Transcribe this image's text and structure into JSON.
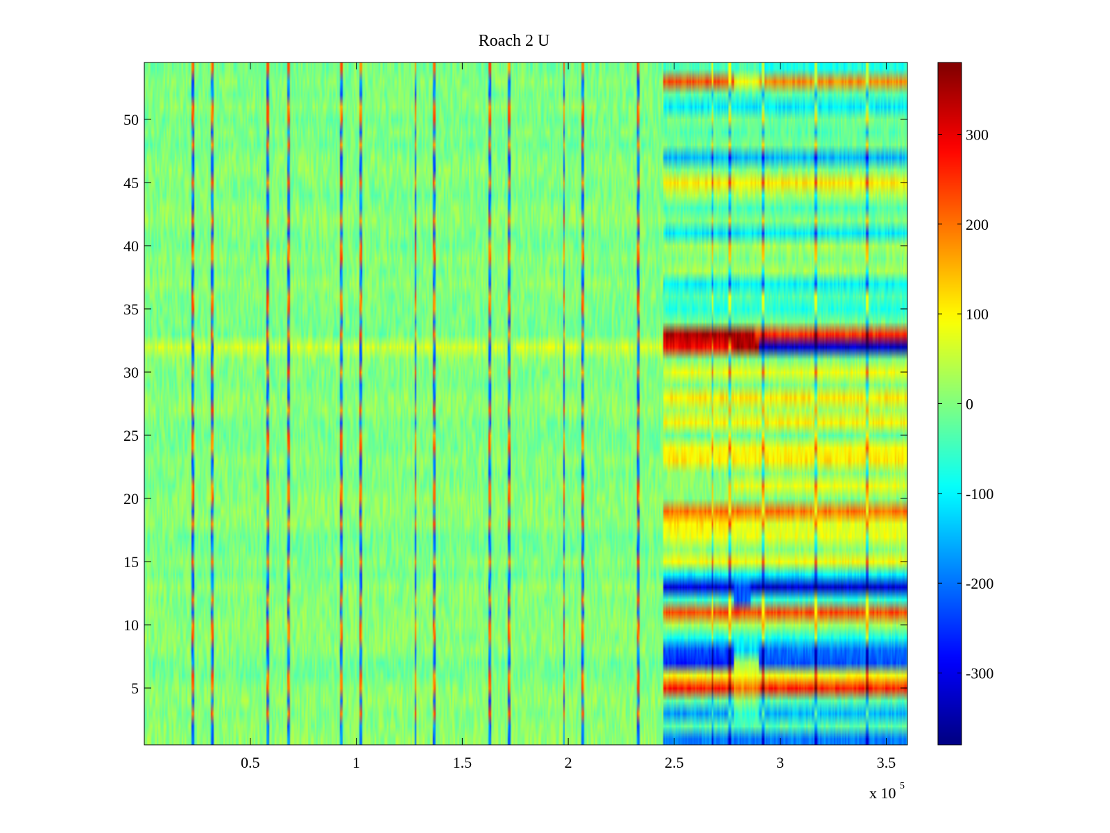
{
  "chart_data": {
    "type": "heatmap",
    "title": "Roach 2 U",
    "xlabel": "",
    "ylabel": "",
    "x_multiplier_label": {
      "base": "x 10",
      "exponent": "5"
    },
    "xlim": [
      0,
      3.6
    ],
    "ylim": [
      0.5,
      54.5
    ],
    "x_ticks": [
      0.5,
      1,
      1.5,
      2,
      2.5,
      3,
      3.5
    ],
    "x_tick_labels": [
      "0.5",
      "1",
      "1.5",
      "2",
      "2.5",
      "3",
      "3.5"
    ],
    "y_ticks": [
      5,
      10,
      15,
      20,
      25,
      30,
      35,
      40,
      45,
      50
    ],
    "y_tick_labels": [
      "5",
      "10",
      "15",
      "20",
      "25",
      "30",
      "35",
      "40",
      "45",
      "50"
    ],
    "colorbar": {
      "colormap": "jet",
      "clim": [
        -380,
        380
      ],
      "ticks": [
        300,
        200,
        100,
        0,
        -100,
        -200,
        -300
      ],
      "tick_labels": [
        "300",
        "200",
        "100",
        "0",
        "-100",
        "-200",
        "-300"
      ]
    },
    "rows": 54,
    "change_point_x": 2.45,
    "spike_x": [
      0.23,
      0.32,
      0.58,
      0.68,
      0.93,
      1.02,
      1.28,
      1.37,
      1.63,
      1.72,
      1.98,
      2.07,
      2.33
    ],
    "late_spike_x": [
      2.68,
      2.76,
      2.92,
      3.17,
      3.41
    ],
    "row_levels_before": {
      "32": 70,
      "6": -15,
      "1": 10,
      "2": 15,
      "13": 5,
      "12": 5,
      "21": 10
    },
    "row_levels_after": {
      "1": [
        {
          "x0": 2.45,
          "x1": 3.6,
          "v": -190
        }
      ],
      "2": [
        {
          "x0": 2.45,
          "x1": 3.6,
          "v": -30
        }
      ],
      "3": [
        {
          "x0": 2.45,
          "x1": 2.78,
          "v": -170
        },
        {
          "x0": 2.78,
          "x1": 2.9,
          "v": -60
        },
        {
          "x0": 2.9,
          "x1": 3.6,
          "v": -150
        }
      ],
      "4": [
        {
          "x0": 2.45,
          "x1": 2.78,
          "v": -30
        },
        {
          "x0": 2.78,
          "x1": 2.9,
          "v": 10
        },
        {
          "x0": 2.9,
          "x1": 3.6,
          "v": -30
        }
      ],
      "5": [
        {
          "x0": 2.45,
          "x1": 2.78,
          "v": 265
        },
        {
          "x0": 2.78,
          "x1": 2.9,
          "v": 190
        },
        {
          "x0": 2.9,
          "x1": 3.6,
          "v": 260
        }
      ],
      "6": [
        {
          "x0": 2.45,
          "x1": 3.6,
          "v": 90
        }
      ],
      "7": [
        {
          "x0": 2.45,
          "x1": 2.78,
          "v": -260
        },
        {
          "x0": 2.78,
          "x1": 2.9,
          "v": 40
        },
        {
          "x0": 2.9,
          "x1": 3.6,
          "v": -220
        }
      ],
      "8": [
        {
          "x0": 2.45,
          "x1": 2.78,
          "v": -230
        },
        {
          "x0": 2.78,
          "x1": 2.9,
          "v": -120
        },
        {
          "x0": 2.9,
          "x1": 3.6,
          "v": -200
        }
      ],
      "9": [
        {
          "x0": 2.45,
          "x1": 3.6,
          "v": -80
        }
      ],
      "10": [
        {
          "x0": 2.45,
          "x1": 3.6,
          "v": 30
        }
      ],
      "11": [
        {
          "x0": 2.45,
          "x1": 3.6,
          "v": 230
        }
      ],
      "12": [
        {
          "x0": 2.45,
          "x1": 2.78,
          "v": -50
        },
        {
          "x0": 2.78,
          "x1": 2.86,
          "v": -220
        },
        {
          "x0": 2.86,
          "x1": 3.6,
          "v": -60
        }
      ],
      "13": [
        {
          "x0": 2.45,
          "x1": 2.78,
          "v": -310
        },
        {
          "x0": 2.78,
          "x1": 2.86,
          "v": -230
        },
        {
          "x0": 2.86,
          "x1": 3.6,
          "v": -320
        }
      ],
      "14": [
        {
          "x0": 2.45,
          "x1": 3.6,
          "v": -100
        }
      ],
      "15": [
        {
          "x0": 2.45,
          "x1": 3.6,
          "v": 90
        }
      ],
      "16": [
        {
          "x0": 2.45,
          "x1": 3.6,
          "v": 10
        }
      ],
      "17": [
        {
          "x0": 2.45,
          "x1": 3.6,
          "v": 80
        }
      ],
      "18": [
        {
          "x0": 2.45,
          "x1": 2.78,
          "v": 110
        },
        {
          "x0": 2.78,
          "x1": 3.6,
          "v": 70
        }
      ],
      "19": [
        {
          "x0": 2.45,
          "x1": 3.6,
          "v": 200
        }
      ],
      "20": [
        {
          "x0": 2.45,
          "x1": 3.6,
          "v": 0
        }
      ],
      "21": [
        {
          "x0": 2.45,
          "x1": 2.78,
          "v": 10
        },
        {
          "x0": 2.78,
          "x1": 3.6,
          "v": 80
        }
      ],
      "22": [
        {
          "x0": 2.45,
          "x1": 3.6,
          "v": 10
        }
      ],
      "23": [
        {
          "x0": 2.45,
          "x1": 3.6,
          "v": 110
        }
      ],
      "24": [
        {
          "x0": 2.45,
          "x1": 3.6,
          "v": 90
        }
      ],
      "25": [
        {
          "x0": 2.45,
          "x1": 3.6,
          "v": -20
        }
      ],
      "26": [
        {
          "x0": 2.45,
          "x1": 3.6,
          "v": 100
        }
      ],
      "27": [
        {
          "x0": 2.45,
          "x1": 3.6,
          "v": 30
        }
      ],
      "28": [
        {
          "x0": 2.45,
          "x1": 3.6,
          "v": 110
        }
      ],
      "29": [
        {
          "x0": 2.45,
          "x1": 3.6,
          "v": 0
        }
      ],
      "30": [
        {
          "x0": 2.45,
          "x1": 3.6,
          "v": 80
        }
      ],
      "31": [
        {
          "x0": 2.45,
          "x1": 3.6,
          "v": 0
        }
      ],
      "32": [
        {
          "x0": 2.45,
          "x1": 2.78,
          "v": 290
        },
        {
          "x0": 2.78,
          "x1": 2.9,
          "v": 350
        },
        {
          "x0": 2.9,
          "x1": 3.6,
          "v": -320
        }
      ],
      "33": [
        {
          "x0": 2.45,
          "x1": 2.88,
          "v": 345
        },
        {
          "x0": 2.88,
          "x1": 3.6,
          "v": 250
        }
      ],
      "34": [
        {
          "x0": 2.45,
          "x1": 3.6,
          "v": -10
        }
      ],
      "35": [
        {
          "x0": 2.45,
          "x1": 3.6,
          "v": -70
        }
      ],
      "36": [
        {
          "x0": 2.45,
          "x1": 3.6,
          "v": -40
        }
      ],
      "37": [
        {
          "x0": 2.45,
          "x1": 3.6,
          "v": -100
        }
      ],
      "38": [
        {
          "x0": 2.45,
          "x1": 3.6,
          "v": 30
        }
      ],
      "39": [
        {
          "x0": 2.45,
          "x1": 3.6,
          "v": 0
        }
      ],
      "40": [
        {
          "x0": 2.45,
          "x1": 3.6,
          "v": 30
        }
      ],
      "41": [
        {
          "x0": 2.45,
          "x1": 3.6,
          "v": -110
        }
      ],
      "42": [
        {
          "x0": 2.45,
          "x1": 3.6,
          "v": 0
        }
      ],
      "43": [
        {
          "x0": 2.45,
          "x1": 3.6,
          "v": -40
        }
      ],
      "44": [
        {
          "x0": 2.45,
          "x1": 3.6,
          "v": 30
        }
      ],
      "45": [
        {
          "x0": 2.45,
          "x1": 3.6,
          "v": 110
        }
      ],
      "46": [
        {
          "x0": 2.45,
          "x1": 3.6,
          "v": 0
        }
      ],
      "47": [
        {
          "x0": 2.45,
          "x1": 3.6,
          "v": -150
        }
      ],
      "48": [
        {
          "x0": 2.45,
          "x1": 3.6,
          "v": -10
        }
      ],
      "49": [
        {
          "x0": 2.45,
          "x1": 3.6,
          "v": -30
        }
      ],
      "50": [
        {
          "x0": 2.45,
          "x1": 3.6,
          "v": -10
        }
      ],
      "51": [
        {
          "x0": 2.45,
          "x1": 3.6,
          "v": -110
        }
      ],
      "52": [
        {
          "x0": 2.45,
          "x1": 3.6,
          "v": -30
        }
      ],
      "53": [
        {
          "x0": 2.45,
          "x1": 2.78,
          "v": 230
        },
        {
          "x0": 2.78,
          "x1": 2.9,
          "v": 90
        },
        {
          "x0": 2.9,
          "x1": 3.6,
          "v": 180
        }
      ],
      "54": [
        {
          "x0": 2.45,
          "x1": 2.9,
          "v": -40
        },
        {
          "x0": 2.9,
          "x1": 3.6,
          "v": -80
        }
      ]
    }
  }
}
